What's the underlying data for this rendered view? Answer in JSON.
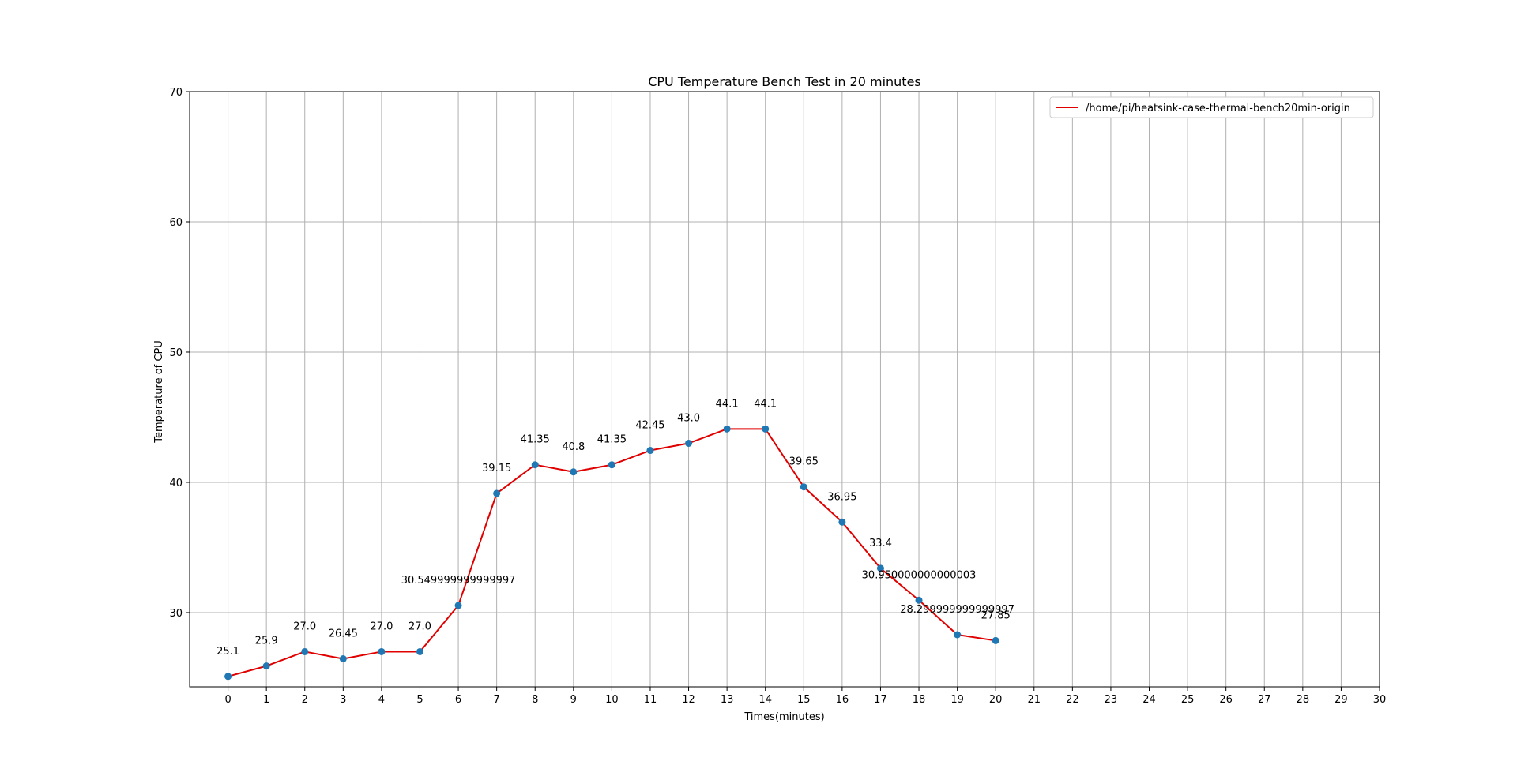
{
  "chart_data": {
    "type": "line",
    "title": "CPU Temperature Bench Test in 20 minutes",
    "xlabel": "Times(minutes)",
    "ylabel": "Temperature of CPU",
    "xlim": [
      -1,
      30
    ],
    "ylim": [
      24.3,
      70
    ],
    "x_ticks": [
      0,
      1,
      2,
      3,
      4,
      5,
      6,
      7,
      8,
      9,
      10,
      11,
      12,
      13,
      14,
      15,
      16,
      17,
      18,
      19,
      20,
      21,
      22,
      23,
      24,
      25,
      26,
      27,
      28,
      29,
      30
    ],
    "y_ticks": [
      30,
      40,
      50,
      60,
      70
    ],
    "grid": true,
    "legend_position": "top-right",
    "series": [
      {
        "name": "/home/pi/heatsink-case-thermal-bench20min-origin",
        "line_color": "#e00000",
        "marker_color": "#1f77b4",
        "x": [
          0,
          1,
          2,
          3,
          4,
          5,
          6,
          7,
          8,
          9,
          10,
          11,
          12,
          13,
          14,
          15,
          16,
          17,
          18,
          19,
          20
        ],
        "values": [
          25.1,
          25.9,
          27.0,
          26.45,
          27.0,
          27.0,
          30.549999999999997,
          39.15,
          41.35,
          40.8,
          41.35,
          42.45,
          43.0,
          44.1,
          44.1,
          39.65,
          36.95,
          33.4,
          30.950000000000003,
          28.299999999999997,
          27.85
        ],
        "labels": [
          "25.1",
          "25.9",
          "27.0",
          "26.45",
          "27.0",
          "27.0",
          "30.549999999999997",
          "39.15",
          "41.35",
          "40.8",
          "41.35",
          "42.45",
          "43.0",
          "44.1",
          "44.1",
          "39.65",
          "36.95",
          "33.4",
          "30.950000000000003",
          "28.299999999999997",
          "27.85"
        ]
      }
    ]
  }
}
